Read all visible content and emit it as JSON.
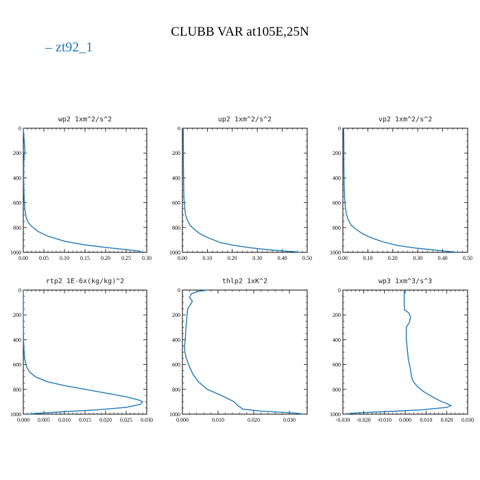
{
  "title": "CLUBB VAR at105E,25N",
  "legend": {
    "label": "zt92_1",
    "color": "#1f77b4"
  },
  "chart_data": [
    {
      "type": "line",
      "title": "wp2  1xm^2/s^2",
      "xlim": [
        0,
        0.3
      ],
      "ylim": [
        0,
        1000
      ],
      "y_inverted": true,
      "xticks": [
        0,
        0.05,
        0.1,
        0.15,
        0.2,
        0.25,
        0.3
      ],
      "xtick_labels": [
        "0.00",
        "0.05",
        "0.10",
        "0.15",
        "0.20",
        "0.25",
        "0.30"
      ],
      "yticks": [
        0,
        200,
        400,
        600,
        800,
        1000
      ],
      "ytick_labels": [
        "0",
        "200",
        "400",
        "600",
        "800",
        "1000"
      ],
      "series": [
        {
          "name": "zt92_1",
          "x": [
            0.0,
            0.002,
            0.004,
            0.003,
            0.002,
            0.001,
            0.001,
            0.002,
            0.004,
            0.007,
            0.012,
            0.02,
            0.035,
            0.06,
            0.1,
            0.15,
            0.2,
            0.24,
            0.27,
            0.283,
            0.285,
            0.28
          ],
          "y": [
            0,
            100,
            180,
            195,
            220,
            300,
            450,
            580,
            660,
            720,
            760,
            790,
            830,
            870,
            910,
            940,
            960,
            975,
            985,
            990,
            995,
            1000
          ]
        }
      ]
    },
    {
      "type": "line",
      "title": "up2  1xm^2/s^2",
      "xlim": [
        0,
        0.5
      ],
      "ylim": [
        0,
        1000
      ],
      "y_inverted": true,
      "xticks": [
        0,
        0.1,
        0.2,
        0.3,
        0.4,
        0.5
      ],
      "xtick_labels": [
        "0.00",
        "0.10",
        "0.20",
        "0.30",
        "0.40",
        "0.50"
      ],
      "yticks": [
        0,
        200,
        400,
        600,
        800,
        1000
      ],
      "ytick_labels": [
        "0",
        "200",
        "400",
        "600",
        "800",
        "1000"
      ],
      "series": [
        {
          "name": "zt92_1",
          "x": [
            0.003,
            0.004,
            0.004,
            0.005,
            0.006,
            0.009,
            0.013,
            0.02,
            0.03,
            0.045,
            0.07,
            0.1,
            0.15,
            0.21,
            0.28,
            0.35,
            0.41,
            0.45,
            0.47
          ],
          "y": [
            0,
            150,
            300,
            450,
            560,
            640,
            700,
            740,
            780,
            810,
            850,
            880,
            920,
            945,
            965,
            980,
            990,
            995,
            1000
          ]
        }
      ]
    },
    {
      "type": "line",
      "title": "vp2  1xm^2/s^2",
      "xlim": [
        0,
        0.5
      ],
      "ylim": [
        0,
        1000
      ],
      "y_inverted": true,
      "xticks": [
        0,
        0.1,
        0.2,
        0.3,
        0.4,
        0.5
      ],
      "xtick_labels": [
        "0.00",
        "0.10",
        "0.20",
        "0.30",
        "0.40",
        "0.50"
      ],
      "yticks": [
        0,
        200,
        400,
        600,
        800,
        1000
      ],
      "ytick_labels": [
        "0",
        "200",
        "400",
        "600",
        "800",
        "1000"
      ],
      "series": [
        {
          "name": "zt92_1",
          "x": [
            0.003,
            0.004,
            0.004,
            0.005,
            0.007,
            0.01,
            0.015,
            0.022,
            0.033,
            0.05,
            0.075,
            0.11,
            0.16,
            0.22,
            0.29,
            0.36,
            0.42,
            0.46
          ],
          "y": [
            0,
            150,
            300,
            450,
            560,
            640,
            700,
            740,
            780,
            810,
            845,
            880,
            915,
            945,
            965,
            980,
            992,
            1000
          ]
        }
      ]
    },
    {
      "type": "line",
      "title": "rtp2  1E-6x(kg/kg)^2",
      "xlim": [
        0,
        0.03
      ],
      "ylim": [
        0,
        1000
      ],
      "y_inverted": true,
      "xticks": [
        0,
        0.005,
        0.01,
        0.015,
        0.02,
        0.025,
        0.03
      ],
      "xtick_labels": [
        "0.000",
        "0.005",
        "0.010",
        "0.015",
        "0.020",
        "0.025",
        "0.030"
      ],
      "yticks": [
        0,
        200,
        400,
        600,
        800,
        1000
      ],
      "ytick_labels": [
        "0",
        "200",
        "400",
        "600",
        "800",
        "1000"
      ],
      "series": [
        {
          "name": "zt92_1",
          "x": [
            0.0,
            0.0,
            0.0001,
            0.0003,
            0.0008,
            0.0015,
            0.003,
            0.006,
            0.01,
            0.015,
            0.02,
            0.025,
            0.028,
            0.029,
            0.0285,
            0.025,
            0.018,
            0.01,
            0.004,
            0.001
          ],
          "y": [
            0,
            300,
            450,
            550,
            620,
            660,
            700,
            740,
            770,
            800,
            830,
            860,
            885,
            900,
            920,
            945,
            965,
            980,
            992,
            1000
          ]
        }
      ]
    },
    {
      "type": "line",
      "title": "thlp2  1xK^2",
      "xlim": [
        0,
        0.035
      ],
      "ylim": [
        0,
        1000
      ],
      "y_inverted": true,
      "xticks": [
        0,
        0.01,
        0.02,
        0.03
      ],
      "xtick_labels": [
        "0.000",
        "0.010",
        "0.020",
        "0.030"
      ],
      "yticks": [
        0,
        200,
        400,
        600,
        800,
        1000
      ],
      "ytick_labels": [
        "0",
        "200",
        "400",
        "600",
        "800",
        "1000"
      ],
      "series": [
        {
          "name": "zt92_1",
          "x": [
            0.007,
            0.0045,
            0.0025,
            0.002,
            0.0028,
            0.0022,
            0.0015,
            0.0013,
            0.001,
            0.0008,
            0.0006,
            0.0007,
            0.001,
            0.0015,
            0.002,
            0.003,
            0.0045,
            0.007,
            0.011,
            0.0145,
            0.0155,
            0.017,
            0.022,
            0.028,
            0.032,
            0.034
          ],
          "y": [
            0,
            10,
            30,
            60,
            90,
            120,
            150,
            200,
            300,
            400,
            450,
            500,
            540,
            580,
            620,
            680,
            740,
            800,
            850,
            900,
            930,
            960,
            975,
            985,
            992,
            1000
          ]
        }
      ]
    },
    {
      "type": "line",
      "title": "wp3  1xm^3/s^3",
      "xlim": [
        -0.03,
        0.03
      ],
      "ylim": [
        0,
        1000
      ],
      "y_inverted": true,
      "xticks": [
        -0.03,
        -0.02,
        -0.01,
        0,
        0.01,
        0.02,
        0.03
      ],
      "xtick_labels": [
        "-0.030",
        "-0.020",
        "-0.010",
        "0.000",
        "0.010",
        "0.020",
        "0.030"
      ],
      "yticks": [
        0,
        200,
        400,
        600,
        800,
        1000
      ],
      "ytick_labels": [
        "0",
        "200",
        "400",
        "600",
        "800",
        "1000"
      ],
      "series": [
        {
          "name": "zt92_1",
          "x": [
            -0.0005,
            -0.0005,
            -0.0004,
            0.001,
            0.002,
            0.0025,
            0.002,
            0.0005,
            0.0005,
            0.001,
            0.0015,
            0.0025,
            0.003,
            0.004,
            0.006,
            0.009,
            0.013,
            0.017,
            0.02,
            0.022,
            0.02,
            0.008,
            -0.01,
            -0.024,
            -0.029
          ],
          "y": [
            0,
            100,
            160,
            175,
            190,
            220,
            260,
            300,
            400,
            480,
            560,
            640,
            700,
            740,
            780,
            820,
            860,
            895,
            915,
            930,
            945,
            965,
            980,
            990,
            1000
          ]
        }
      ]
    }
  ]
}
